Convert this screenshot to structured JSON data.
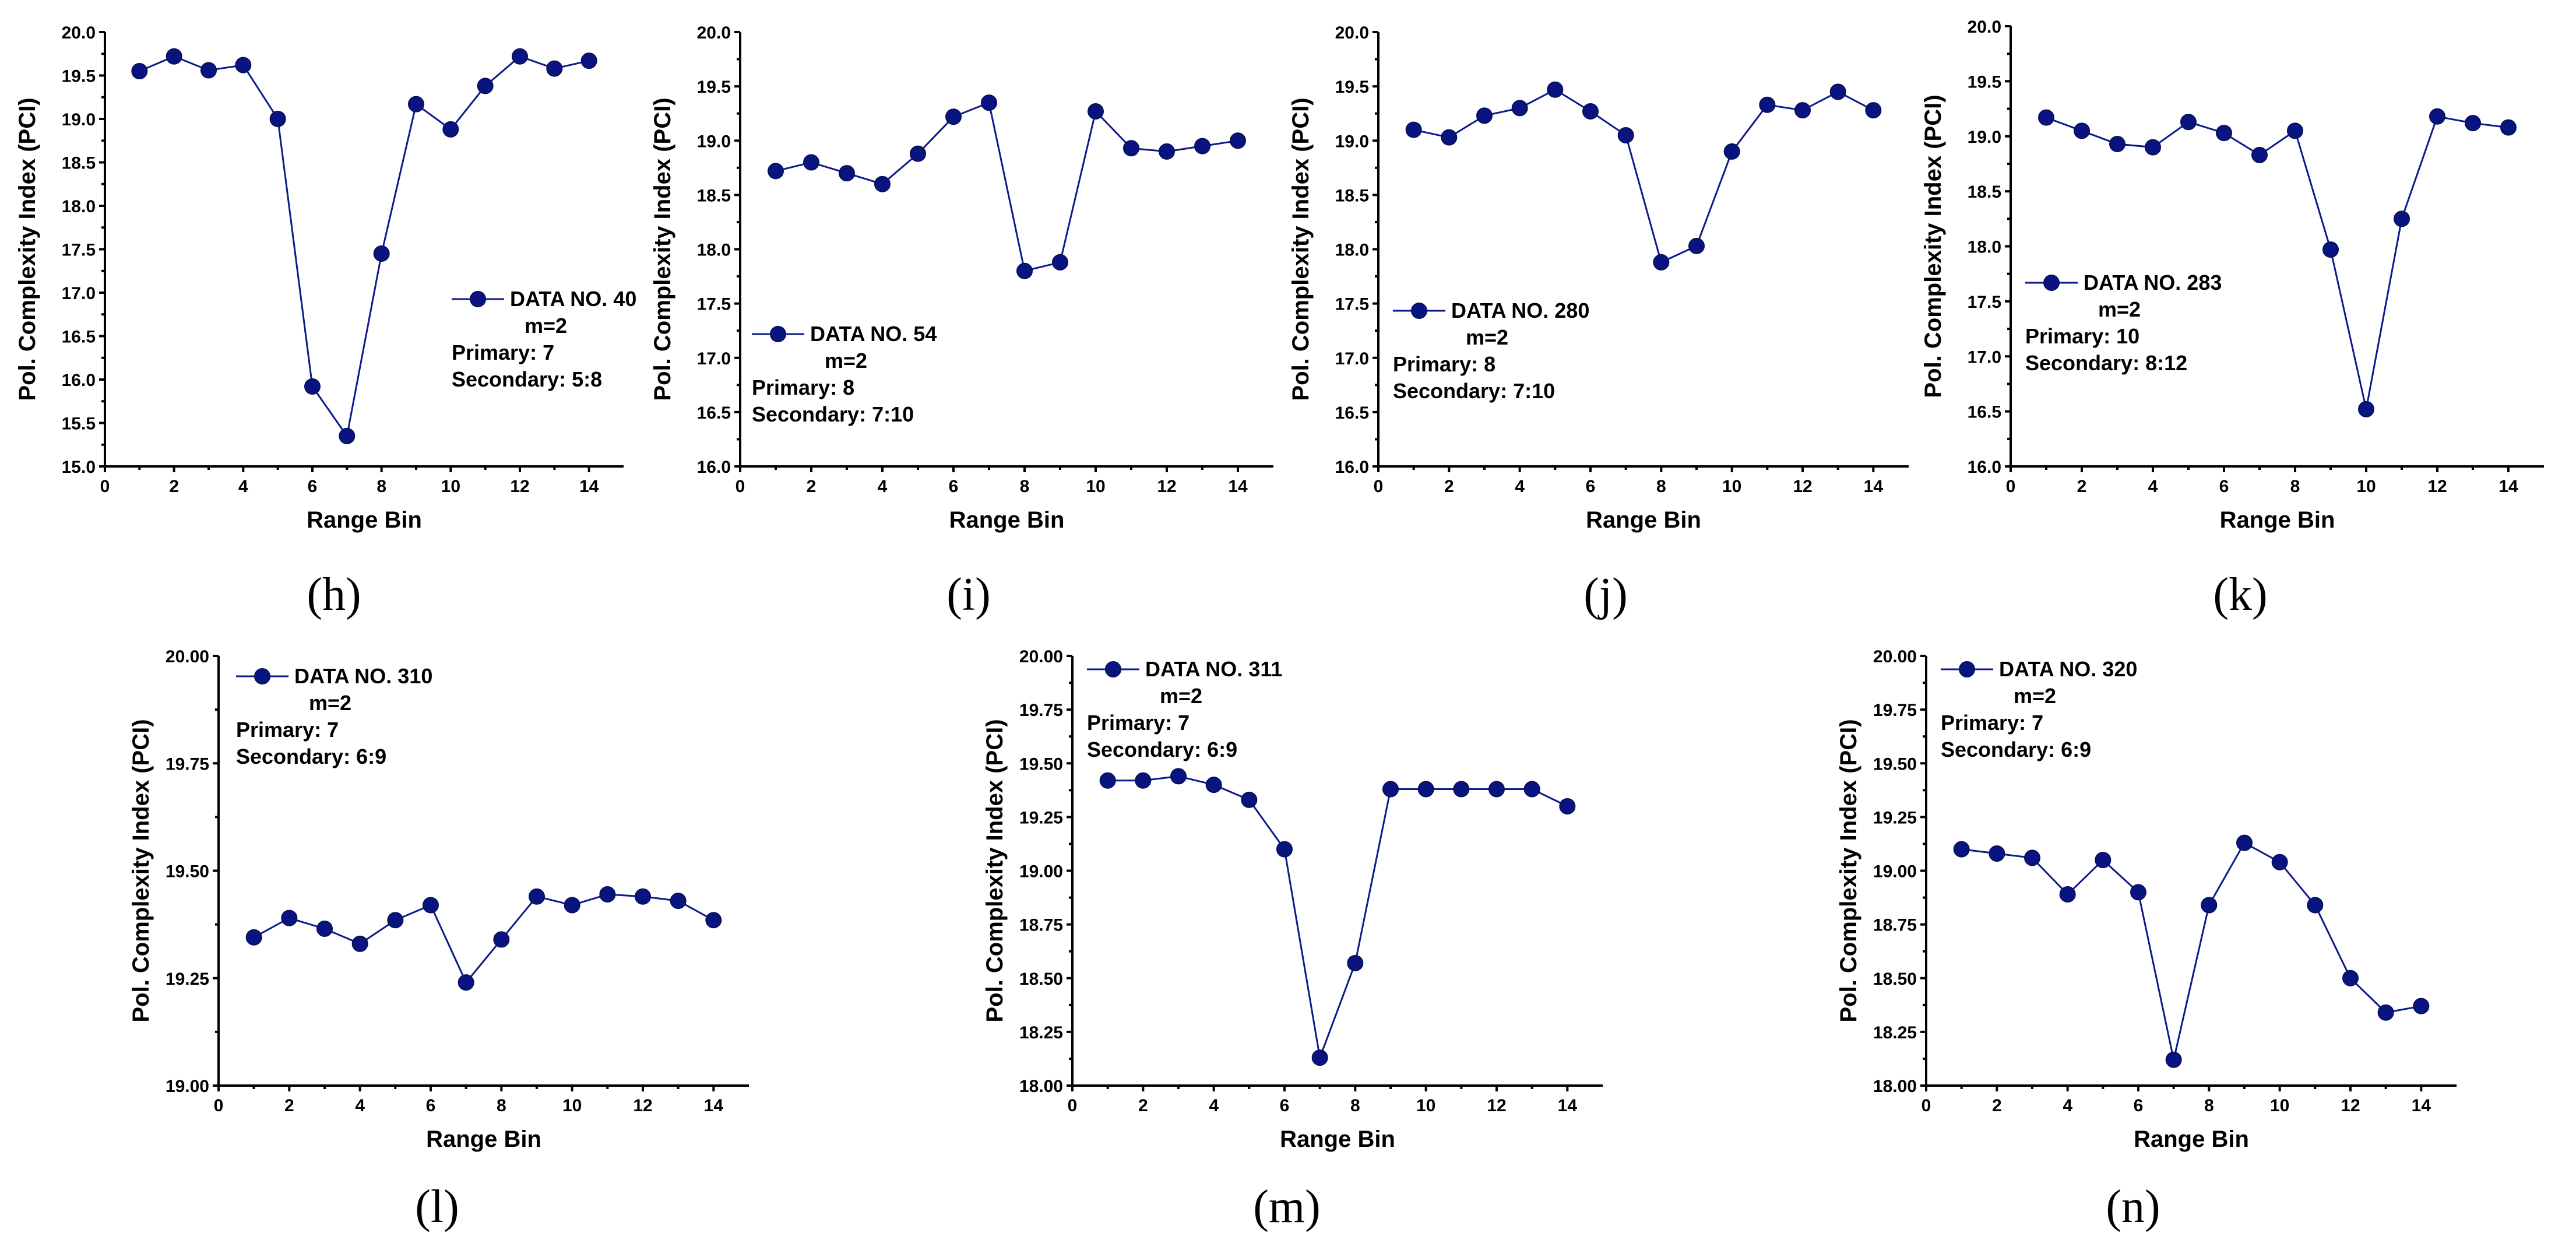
{
  "colors": {
    "series": "#0c1a8a",
    "marker": "#0a1480"
  },
  "chart_data": [
    {
      "id": "h",
      "type": "line",
      "panel_label": "(h)",
      "xlabel": "Range Bin",
      "ylabel": "Pol. Complexity Index (PCI)",
      "xlim": [
        0,
        15
      ],
      "ylim": [
        15.0,
        20.0
      ],
      "xticks": [
        "0",
        "2",
        "4",
        "6",
        "8",
        "10",
        "12",
        "14"
      ],
      "yticks": [
        "15.0",
        "15.5",
        "16.0",
        "16.5",
        "17.0",
        "17.5",
        "18.0",
        "18.5",
        "19.0",
        "19.5",
        "20.0"
      ],
      "x": [
        1,
        2,
        3,
        4,
        5,
        6,
        7,
        8,
        9,
        10,
        11,
        12,
        13,
        14
      ],
      "values": [
        19.55,
        19.72,
        19.56,
        19.62,
        19.0,
        15.92,
        15.35,
        17.45,
        19.17,
        18.88,
        19.38,
        19.72,
        19.58,
        19.67
      ],
      "legend": {
        "series": "DATA NO. 40",
        "m": "m=2",
        "primary": "Primary: 7",
        "secondary": "Secondary: 5:8"
      }
    },
    {
      "id": "i",
      "type": "line",
      "panel_label": "(i)",
      "xlabel": "Range Bin",
      "ylabel": "Pol. Complexity Index (PCI)",
      "xlim": [
        0,
        15
      ],
      "ylim": [
        16.0,
        20.0
      ],
      "xticks": [
        "0",
        "2",
        "4",
        "6",
        "8",
        "10",
        "12",
        "14"
      ],
      "yticks": [
        "16.0",
        "16.5",
        "17.0",
        "17.5",
        "18.0",
        "18.5",
        "19.0",
        "19.5",
        "20.0"
      ],
      "x": [
        1,
        2,
        3,
        4,
        5,
        6,
        7,
        8,
        9,
        10,
        11,
        12,
        13,
        14
      ],
      "values": [
        18.72,
        18.8,
        18.7,
        18.6,
        18.88,
        19.22,
        19.35,
        17.8,
        17.88,
        19.27,
        18.93,
        18.9,
        18.95,
        19.0
      ],
      "legend": {
        "series": "DATA NO. 54",
        "m": "m=2",
        "primary": "Primary: 8",
        "secondary": "Secondary: 7:10"
      }
    },
    {
      "id": "j",
      "type": "line",
      "panel_label": "(j)",
      "xlabel": "Range Bin",
      "ylabel": "Pol. Complexity Index (PCI)",
      "xlim": [
        0,
        15
      ],
      "ylim": [
        16.0,
        20.0
      ],
      "xticks": [
        "0",
        "2",
        "4",
        "6",
        "8",
        "10",
        "12",
        "14"
      ],
      "yticks": [
        "16.0",
        "16.5",
        "17.0",
        "17.5",
        "18.0",
        "18.5",
        "19.0",
        "19.5",
        "20.0"
      ],
      "x": [
        1,
        2,
        3,
        4,
        5,
        6,
        7,
        8,
        9,
        10,
        11,
        12,
        13,
        14
      ],
      "values": [
        19.1,
        19.03,
        19.23,
        19.3,
        19.47,
        19.27,
        19.05,
        17.88,
        18.03,
        18.9,
        19.33,
        19.28,
        19.45,
        19.28
      ],
      "legend": {
        "series": "DATA NO. 280",
        "m": "m=2",
        "primary": "Primary: 8",
        "secondary": "Secondary: 7:10"
      }
    },
    {
      "id": "k",
      "type": "line",
      "panel_label": "(k)",
      "xlabel": "Range Bin",
      "ylabel": "Pol. Complexity Index (PCI)",
      "xlim": [
        0,
        15
      ],
      "ylim": [
        16.0,
        20.0
      ],
      "xticks": [
        "0",
        "2",
        "4",
        "6",
        "8",
        "10",
        "12",
        "14"
      ],
      "yticks": [
        "16.0",
        "16.5",
        "17.0",
        "17.5",
        "18.0",
        "18.5",
        "19.0",
        "19.5",
        "20.0"
      ],
      "x": [
        1,
        2,
        3,
        4,
        5,
        6,
        7,
        8,
        9,
        10,
        11,
        12,
        13,
        14
      ],
      "values": [
        19.17,
        19.05,
        18.93,
        18.9,
        19.13,
        19.03,
        18.83,
        19.05,
        17.97,
        16.52,
        18.25,
        19.18,
        19.12,
        19.08
      ],
      "legend": {
        "series": "DATA NO. 283",
        "m": "m=2",
        "primary": "Primary: 10",
        "secondary": "Secondary: 8:12"
      }
    },
    {
      "id": "l",
      "type": "line",
      "panel_label": "(l)",
      "xlabel": "Range Bin",
      "ylabel": "Pol. Complexity Index (PCI)",
      "xlim": [
        0,
        15
      ],
      "ylim": [
        19.0,
        20.0
      ],
      "xticks": [
        "0",
        "2",
        "4",
        "6",
        "8",
        "10",
        "12",
        "14"
      ],
      "yticks": [
        "19.00",
        "19.25",
        "19.50",
        "19.75",
        "20.00"
      ],
      "x": [
        1,
        2,
        3,
        4,
        5,
        6,
        7,
        8,
        9,
        10,
        11,
        12,
        13,
        14
      ],
      "values": [
        19.345,
        19.39,
        19.365,
        19.33,
        19.385,
        19.42,
        19.24,
        19.34,
        19.44,
        19.42,
        19.445,
        19.44,
        19.43,
        19.385
      ],
      "legend": {
        "series": "DATA NO. 310",
        "m": "m=2",
        "primary": "Primary: 7",
        "secondary": "Secondary: 6:9"
      }
    },
    {
      "id": "m",
      "type": "line",
      "panel_label": "(m)",
      "xlabel": "Range Bin",
      "ylabel": "Pol. Complexity Index (PCI)",
      "xlim": [
        0,
        15
      ],
      "ylim": [
        18.0,
        20.0
      ],
      "xticks": [
        "0",
        "2",
        "4",
        "6",
        "8",
        "10",
        "12",
        "14"
      ],
      "yticks": [
        "18.00",
        "18.25",
        "18.50",
        "18.75",
        "19.00",
        "19.25",
        "19.50",
        "19.75",
        "20.00"
      ],
      "x": [
        1,
        2,
        3,
        4,
        5,
        6,
        7,
        8,
        9,
        10,
        11,
        12,
        13,
        14
      ],
      "values": [
        19.42,
        19.42,
        19.44,
        19.4,
        19.33,
        19.1,
        18.13,
        18.57,
        19.38,
        19.38,
        19.38,
        19.38,
        19.38,
        19.3
      ],
      "legend": {
        "series": "DATA NO. 311",
        "m": "m=2",
        "primary": "Primary: 7",
        "secondary": "Secondary: 6:9"
      }
    },
    {
      "id": "n",
      "type": "line",
      "panel_label": "(n)",
      "xlabel": "Range Bin",
      "ylabel": "Pol. Complexity Index (PCI)",
      "xlim": [
        0,
        15
      ],
      "ylim": [
        18.0,
        20.0
      ],
      "xticks": [
        "0",
        "2",
        "4",
        "6",
        "8",
        "10",
        "12",
        "14"
      ],
      "yticks": [
        "18.00",
        "18.25",
        "18.50",
        "18.75",
        "19.00",
        "19.25",
        "19.50",
        "19.75",
        "20.00"
      ],
      "x": [
        1,
        2,
        3,
        4,
        5,
        6,
        7,
        8,
        9,
        10,
        11,
        12,
        13,
        14
      ],
      "values": [
        19.1,
        19.08,
        19.06,
        18.89,
        19.05,
        18.9,
        18.12,
        18.84,
        19.13,
        19.04,
        18.84,
        18.5,
        18.34,
        18.37
      ],
      "legend": {
        "series": "DATA NO. 320",
        "m": "m=2",
        "primary": "Primary: 7",
        "secondary": "Secondary: 6:9"
      }
    }
  ]
}
